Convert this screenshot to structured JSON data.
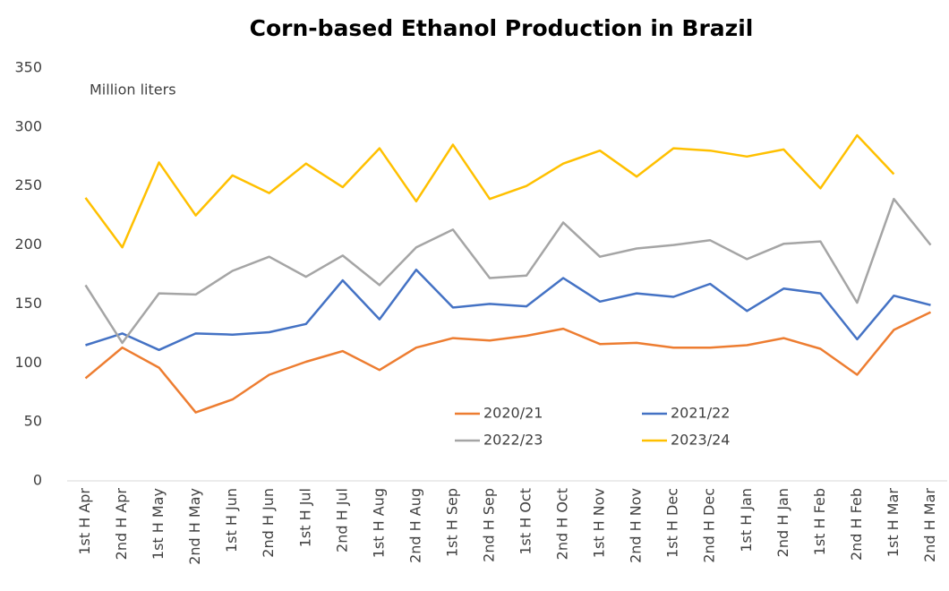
{
  "chart_data": {
    "type": "line",
    "title": "Corn-based Ethanol Production in Brazil",
    "annotation": "Million liters",
    "categories": [
      "1st H Apr",
      "2nd H Apr",
      "1st H May",
      "2nd H May",
      "1st H Jun",
      "2nd H Jun",
      "1st H Jul",
      "2nd H Jul",
      "1st H Aug",
      "2nd H Aug",
      "1st H Sep",
      "2nd H Sep",
      "1st H Oct",
      "2nd H Oct",
      "1st H Nov",
      "2nd H Nov",
      "1st H Dec",
      "2nd H Dec",
      "1st H Jan",
      "2nd H Jan",
      "1st H Feb",
      "2nd H Feb",
      "1st H Mar",
      "2nd H Mar"
    ],
    "series": [
      {
        "name": "2020/21",
        "color": "#ed7d31",
        "values": [
          87,
          113,
          96,
          58,
          69,
          90,
          101,
          110,
          94,
          113,
          121,
          119,
          123,
          129,
          116,
          117,
          113,
          113,
          115,
          121,
          112,
          90,
          128,
          143
        ]
      },
      {
        "name": "2021/22",
        "color": "#4472c4",
        "values": [
          115,
          125,
          111,
          125,
          124,
          126,
          133,
          170,
          137,
          179,
          147,
          150,
          148,
          172,
          152,
          159,
          156,
          167,
          144,
          163,
          159,
          120,
          157,
          149
        ]
      },
      {
        "name": "2022/23",
        "color": "#a5a5a5",
        "values": [
          166,
          117,
          159,
          158,
          178,
          190,
          173,
          191,
          166,
          198,
          213,
          172,
          174,
          219,
          190,
          197,
          200,
          204,
          188,
          201,
          203,
          151,
          239,
          200
        ]
      },
      {
        "name": "2023/24",
        "color": "#ffc000",
        "values": [
          240,
          198,
          270,
          225,
          259,
          244,
          269,
          249,
          282,
          237,
          285,
          239,
          250,
          269,
          280,
          258,
          282,
          280,
          275,
          281,
          248,
          293,
          260,
          null
        ]
      }
    ],
    "ylim": [
      0,
      350
    ],
    "yticks": [
      0,
      50,
      100,
      150,
      200,
      250,
      300,
      350
    ],
    "grid": false
  }
}
